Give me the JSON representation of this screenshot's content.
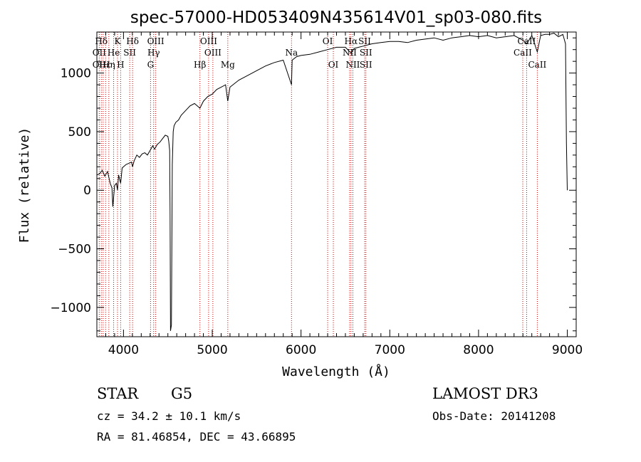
{
  "chart_data": {
    "type": "line",
    "title": "spec-57000-HD053409N435614V01_sp03-080.fits",
    "xlabel": "Wavelength (Å)",
    "ylabel": "Flux (relative)",
    "xlim": [
      3700,
      9100
    ],
    "ylim": [
      -1250,
      1350
    ],
    "x_ticks": [
      4000,
      5000,
      6000,
      7000,
      8000,
      9000
    ],
    "y_ticks": [
      -1000,
      -500,
      0,
      500,
      1000
    ],
    "grid": false,
    "legend": "none",
    "series": [
      {
        "x": [
          3700,
          3730,
          3760,
          3790,
          3820,
          3850,
          3870,
          3880,
          3900,
          3920,
          3933,
          3945,
          3968,
          3985,
          4000,
          4030,
          4060,
          4090,
          4102,
          4120,
          4150,
          4180,
          4210,
          4240,
          4270,
          4300,
          4330,
          4350,
          4380,
          4410,
          4440,
          4470,
          4500,
          4510,
          4520,
          4525,
          4530,
          4540,
          4550,
          4560,
          4570,
          4590,
          4620,
          4650,
          4700,
          4750,
          4800,
          4861,
          4900,
          4950,
          5000,
          5050,
          5100,
          5150,
          5175,
          5200,
          5300,
          5400,
          5500,
          5600,
          5700,
          5800,
          5893,
          5900,
          5950,
          6000,
          6100,
          6200,
          6300,
          6400,
          6500,
          6563,
          6600,
          6700,
          6800,
          6900,
          7000,
          7100,
          7200,
          7300,
          7400,
          7500,
          7600,
          7700,
          7800,
          7900,
          8000,
          8100,
          8200,
          8300,
          8400,
          8500,
          8542,
          8600,
          8662,
          8700,
          8750,
          8800,
          8850,
          8900,
          8950,
          8980,
          8990,
          9000
        ],
        "y": [
          130,
          140,
          170,
          120,
          160,
          60,
          20,
          -140,
          40,
          60,
          0,
          130,
          60,
          190,
          200,
          220,
          230,
          240,
          200,
          250,
          300,
          280,
          310,
          320,
          300,
          340,
          380,
          350,
          390,
          410,
          440,
          470,
          460,
          420,
          340,
          -200,
          -1200,
          -1150,
          220,
          500,
          550,
          580,
          600,
          640,
          680,
          720,
          740,
          700,
          760,
          800,
          820,
          860,
          880,
          900,
          760,
          880,
          940,
          980,
          1020,
          1060,
          1090,
          1110,
          900,
          1110,
          1140,
          1150,
          1160,
          1180,
          1200,
          1220,
          1220,
          1170,
          1210,
          1230,
          1250,
          1260,
          1270,
          1270,
          1260,
          1280,
          1290,
          1300,
          1280,
          1300,
          1310,
          1320,
          1310,
          1320,
          1300,
          1310,
          1320,
          1280,
          1250,
          1320,
          1180,
          1320,
          1330,
          1330,
          1340,
          1310,
          1330,
          1250,
          400,
          0
        ]
      }
    ],
    "spectral_lines": [
      {
        "label": "Hδ",
        "wavelength": 3750,
        "row": 1
      },
      {
        "label": "OII",
        "wavelength": 3727,
        "row": 2
      },
      {
        "label": "OII",
        "wavelength": 3727,
        "row": 3
      },
      {
        "label": "Hε",
        "wavelength": 3790,
        "row": 3
      },
      {
        "label": "He",
        "wavelength": 3889,
        "row": 2
      },
      {
        "label": "Hη",
        "wavelength": 3835,
        "row": 3
      },
      {
        "label": "H",
        "wavelength": 3968,
        "row": 3
      },
      {
        "label": "K",
        "wavelength": 3933,
        "row": 1
      },
      {
        "label": "SII",
        "wavelength": 4070,
        "row": 2
      },
      {
        "label": "Hδ",
        "wavelength": 4102,
        "row": 1
      },
      {
        "label": "OIII",
        "wavelength": 4363,
        "row": 1
      },
      {
        "label": "Hγ",
        "wavelength": 4340,
        "row": 2
      },
      {
        "label": "G",
        "wavelength": 4305,
        "row": 3
      },
      {
        "label": "Hβ",
        "wavelength": 4861,
        "row": 3
      },
      {
        "label": "OIII",
        "wavelength": 4959,
        "row": 1
      },
      {
        "label": "OIII",
        "wavelength": 5007,
        "row": 2
      },
      {
        "label": "Mg",
        "wavelength": 5175,
        "row": 3
      },
      {
        "label": "Na",
        "wavelength": 5893,
        "row": 2
      },
      {
        "label": "OI",
        "wavelength": 6300,
        "row": 1
      },
      {
        "label": "OI",
        "wavelength": 6364,
        "row": 3
      },
      {
        "label": "Hα",
        "wavelength": 6563,
        "row": 1
      },
      {
        "label": "NII",
        "wavelength": 6548,
        "row": 2
      },
      {
        "label": "NII",
        "wavelength": 6584,
        "row": 3
      },
      {
        "label": "SII",
        "wavelength": 6717,
        "row": 1
      },
      {
        "label": "SII",
        "wavelength": 6731,
        "row": 2
      },
      {
        "label": "SII",
        "wavelength": 6731,
        "row": 3
      },
      {
        "label": "CaII",
        "wavelength": 8542,
        "row": 1
      },
      {
        "label": "CaII",
        "wavelength": 8498,
        "row": 2
      },
      {
        "label": "CaII",
        "wavelength": 8662,
        "row": 3
      }
    ],
    "spectral_line_wavelengths": [
      3727,
      3750,
      3771,
      3798,
      3835,
      3889,
      3933,
      3968,
      4070,
      4102,
      4305,
      4340,
      4363,
      4861,
      4959,
      5007,
      5175,
      5893,
      6300,
      6364,
      6548,
      6563,
      6584,
      6717,
      6731,
      8498,
      8542,
      8662
    ]
  },
  "info": {
    "object_class": "STAR",
    "subclass": "G5",
    "survey": "LAMOST DR3",
    "redshift": "cz = 34.2 ± 10.1 km/s",
    "obs_date": "Obs-Date: 20141208",
    "coordinates": "RA =  81.46854, DEC =  43.66895"
  },
  "colors": {
    "spectrum": "#000000",
    "line_markers": "#cc0000",
    "axes": "#000000",
    "background": "#ffffff"
  }
}
